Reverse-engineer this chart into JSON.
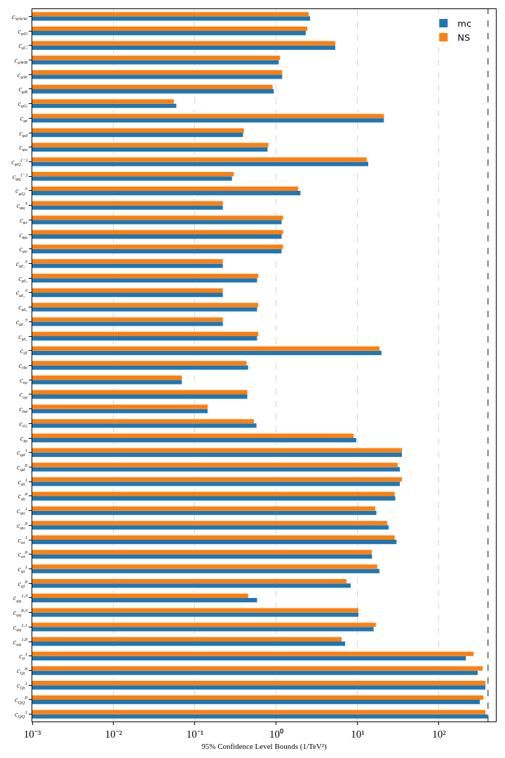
{
  "chart_data": {
    "type": "bar",
    "orientation": "horizontal",
    "log": "x",
    "grid": "x",
    "legend": "top right",
    "xlabel": "95% Confidence Level Bounds (1/TeV²)",
    "categories": [
      "c$_{WWW}$",
      "c$_{φD}$",
      "c$_{φ□}$",
      "c$_{φWB}$",
      "c$_{φW}$",
      "c$_{φB}$",
      "c$_{φG}$",
      "c$_{φt}$",
      "c$_{φd}$",
      "c$_{φu}$",
      "c$_{φQ}$$^{(−)}$",
      "c$_{φq}$$^{(−)}$",
      "c$_{φQ}$$^{3}$",
      "c$_{φq}$$^{3}$",
      "c$_{φτ}$",
      "c$_{φμ}$",
      "c$_{φe}$",
      "c$_{φl₃}$$^{3}$",
      "c$_{φl₃}$",
      "c$_{φl₂}$$^{3}$",
      "c$_{φl₂}$",
      "c$_{φl₁}$$^{3}$",
      "c$_{φl₁}$",
      "c$_{tZ}$",
      "c$_{tW}$",
      "c$_{τφ}$",
      "c$_{cφ}$",
      "c$_{bφ}$",
      "c$_{tG}$",
      "c$_{tφ}$",
      "c$_{qd}$$^{1}$",
      "c$_{qd}$$^{8}$",
      "c$_{dt}$$^{1}$",
      "c$_{dt}$$^{8}$",
      "c$_{qu}$$^{1}$",
      "c$_{qu}$$^{8}$",
      "c$_{ut}$$^{1}$",
      "c$_{ut}$$^{8}$",
      "c$_{qt}$$^{1}$",
      "c$_{qt}$$^{8}$",
      "c$_{qq}$$^{1,3}$",
      "c$_{qq}$$^{8,3}$",
      "c$_{qq}$$^{1,1}$",
      "c$_{qq}$$^{1,8}$",
      "c$_{tt}$$^{1}$",
      "c$_{Qt}$$^{8}$",
      "c$_{Qt}$$^{1}$",
      "c$_{QQ}$$^{8}$",
      "c$_{QQ}$$^{1}$"
    ],
    "series": [
      {
        "name": "mc",
        "color": "#1f77b4",
        "values": [
          2.6,
          2.3,
          5.3,
          1.07,
          1.18,
          0.93,
          0.059,
          21,
          0.39,
          0.78,
          13.5,
          0.285,
          1.98,
          0.22,
          1.16,
          1.16,
          1.16,
          0.22,
          0.58,
          0.22,
          0.58,
          0.22,
          0.58,
          19.6,
          0.45,
          0.069,
          0.44,
          0.143,
          0.57,
          9.6,
          35,
          33,
          33,
          29,
          17,
          24,
          30,
          15,
          18.5,
          8.2,
          0.58,
          10.2,
          15.7,
          7.0,
          214,
          299,
          372,
          318,
          395
        ]
      },
      {
        "name": "NS",
        "color": "#ff7f0e",
        "values": [
          2.5,
          2.4,
          5.3,
          1.11,
          1.18,
          0.9,
          0.055,
          21,
          0.4,
          0.8,
          12.9,
          0.3,
          1.86,
          0.22,
          1.21,
          1.21,
          1.21,
          0.22,
          0.6,
          0.22,
          0.6,
          0.22,
          0.6,
          18.5,
          0.43,
          0.069,
          0.44,
          0.143,
          0.53,
          8.9,
          35,
          31,
          35,
          28.5,
          16.4,
          23,
          28.5,
          14.9,
          17.4,
          7.3,
          0.45,
          10.2,
          16.7,
          6.35,
          266,
          344,
          372,
          351,
          372
        ]
      }
    ],
    "xlim": [
      0.001,
      500
    ],
    "xticks": [
      {
        "value": 0.001,
        "label": "10⁻³"
      },
      {
        "value": 0.01,
        "label": "10⁻²"
      },
      {
        "value": 0.1,
        "label": "10⁻¹"
      },
      {
        "value": 1,
        "label": "10⁰"
      },
      {
        "value": 10,
        "label": "10¹"
      },
      {
        "value": 100,
        "label": "10²"
      }
    ],
    "ref_lines": [
      {
        "axis": "x",
        "value": 400,
        "color": "#444444",
        "line_style": "dashed"
      }
    ]
  }
}
